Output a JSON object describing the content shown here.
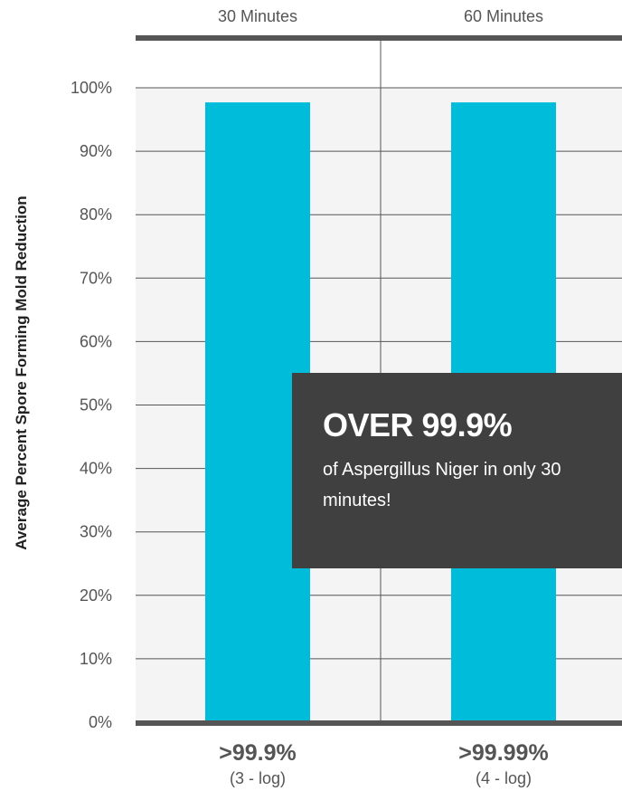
{
  "chart_data": {
    "type": "bar",
    "categories": [
      "30 Minutes",
      "60 Minutes"
    ],
    "values": [
      99.9,
      99.99
    ],
    "ylabel": "Average Percent Spore Forming Mold  Reduction",
    "ylim": [
      0,
      100
    ],
    "yticks": [
      "0%",
      "10%",
      "20%",
      "30%",
      "40%",
      "50%",
      "60%",
      "70%",
      "80%",
      "90%",
      "100%"
    ],
    "value_labels": [
      ">99.9%",
      ">99.99%"
    ],
    "sub_labels": [
      "(3 - log)",
      "(4 - log)"
    ],
    "grid": true,
    "colors": {
      "bar": "#00bcdb",
      "axis_line": "#555555",
      "grid": "#555555",
      "plot_bg": "#f4f4f4",
      "callout_bg": "#404040"
    }
  },
  "callout": {
    "headline": "OVER 99.9%",
    "body": "of Aspergillus Niger in only 30 minutes!"
  }
}
